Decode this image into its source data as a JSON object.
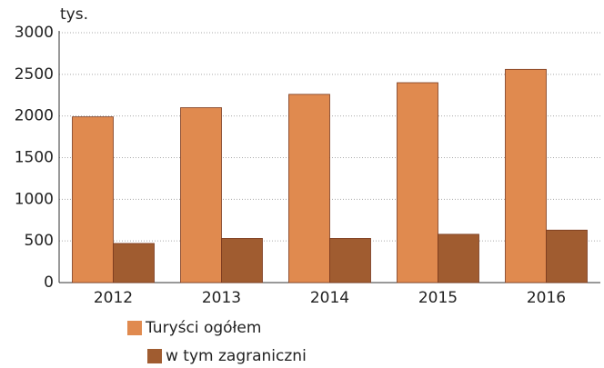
{
  "chart_data": {
    "type": "bar",
    "y_label": "tys.",
    "categories": [
      "2012",
      "2013",
      "2014",
      "2015",
      "2016"
    ],
    "series": [
      {
        "name": "Turyści ogółem",
        "color": "#e08a4f",
        "values": [
          1990,
          2100,
          2260,
          2400,
          2560
        ]
      },
      {
        "name": "w tym zagraniczni",
        "color": "#a05c30",
        "values": [
          470,
          530,
          530,
          580,
          630
        ]
      }
    ],
    "ylim": [
      0,
      3000
    ],
    "yticks": [
      0,
      500,
      1000,
      1500,
      2000,
      2500,
      3000
    ],
    "grid": true
  }
}
